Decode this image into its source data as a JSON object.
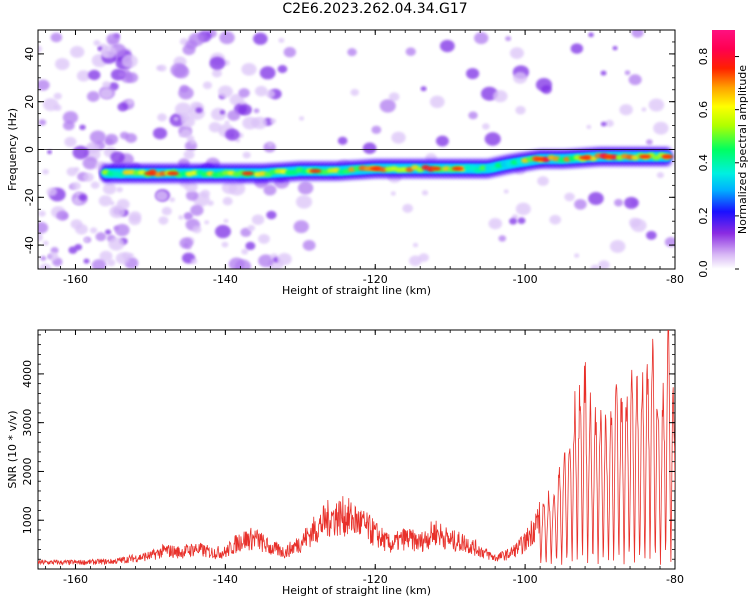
{
  "title": "C2E6.2023.262.04.34.G17",
  "colors": {
    "snr_line": "#e8302a",
    "spectral_tint": "#b98cf0",
    "axis": "#000000"
  },
  "chart_data": [
    {
      "type": "heatmap",
      "xlabel": "Height of straight line (km)",
      "ylabel": "Frequency (Hz)",
      "xlim": [
        -165,
        -80
      ],
      "ylim": [
        -50,
        50
      ],
      "xticks": [
        "-160",
        "-140",
        "-120",
        "-100",
        "-80"
      ],
      "xtick_values": [
        -160,
        -140,
        -120,
        -100,
        -80
      ],
      "yticks": [
        "-40",
        "-20",
        "0",
        "20",
        "40"
      ],
      "ytick_values": [
        -40,
        -20,
        0,
        20,
        40
      ],
      "grid": false,
      "colorbar": {
        "label": "Normalized spectral amplitude",
        "range": [
          0,
          0.9
        ],
        "ticks": [
          "0.0",
          "0.2",
          "0.4",
          "0.6",
          "0.8"
        ],
        "tick_values": [
          0.0,
          0.2,
          0.4,
          0.6,
          0.8
        ]
      },
      "ridge": {
        "x": [
          -156,
          -150,
          -145,
          -140,
          -135,
          -130,
          -125,
          -120,
          -115,
          -110,
          -105,
          -102,
          -98,
          -95,
          -90,
          -85,
          -81
        ],
        "y": [
          -10,
          -10,
          -10,
          -10,
          -10,
          -9,
          -9,
          -8,
          -8,
          -8,
          -8,
          -6,
          -4,
          -4,
          -3,
          -3,
          -3
        ],
        "amplitude": [
          0.45,
          0.6,
          0.55,
          0.55,
          0.6,
          0.5,
          0.55,
          0.6,
          0.65,
          0.6,
          0.4,
          0.35,
          0.7,
          0.55,
          0.75,
          0.6,
          0.55
        ]
      }
    },
    {
      "type": "line",
      "xlabel": "Height of straight line (km)",
      "ylabel": "SNR (10 * v/v)",
      "xlim": [
        -165,
        -80
      ],
      "ylim": [
        0,
        4900
      ],
      "xticks": [
        "-160",
        "-140",
        "-120",
        "-100",
        "-80"
      ],
      "xtick_values": [
        -160,
        -140,
        -120,
        -100,
        -80
      ],
      "yticks": [
        "1000",
        "2000",
        "3000",
        "4000"
      ],
      "ytick_values": [
        1000,
        2000,
        3000,
        4000
      ],
      "grid": false,
      "series": [
        {
          "x": [
            -165,
            -160,
            -155,
            -152,
            -150,
            -148,
            -146,
            -144,
            -142,
            -140,
            -138,
            -136,
            -134,
            -132,
            -130,
            -128,
            -126,
            -124,
            -122,
            -120,
            -118,
            -116,
            -114,
            -112,
            -110,
            -108,
            -106,
            -104,
            -102,
            -100,
            -98,
            -96,
            -94,
            -93,
            -92,
            -91,
            -90,
            -89,
            -88,
            -87,
            -86,
            -85,
            -84,
            -83,
            -82,
            -81,
            -80
          ],
          "y": [
            150,
            150,
            170,
            250,
            300,
            420,
            380,
            460,
            380,
            380,
            650,
            700,
            480,
            380,
            600,
            900,
            1180,
            1200,
            1050,
            800,
            550,
            700,
            600,
            850,
            650,
            600,
            420,
            250,
            350,
            600,
            1200,
            1700,
            2600,
            3600,
            4000,
            3000,
            3200,
            2800,
            3700,
            3400,
            3800,
            3500,
            3800,
            4800,
            3000,
            4800,
            3000
          ]
        }
      ]
    }
  ]
}
